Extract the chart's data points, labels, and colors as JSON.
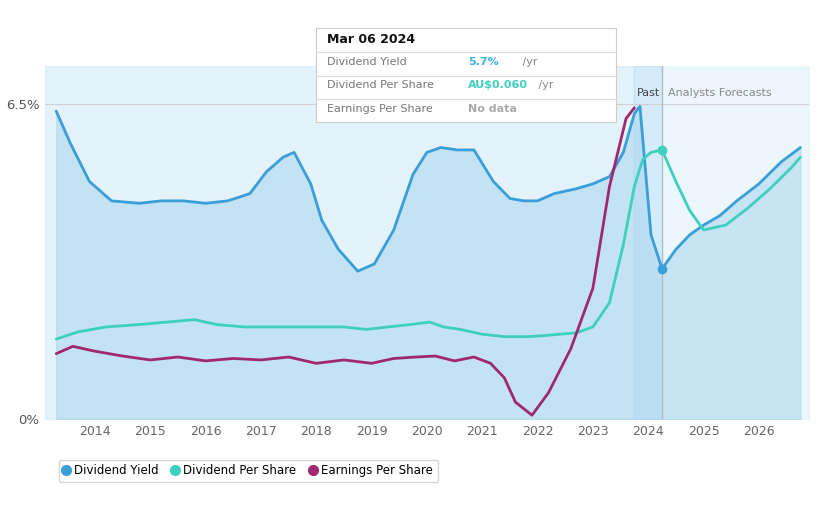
{
  "tooltip_date": "Mar 06 2024",
  "tooltip_rows": [
    {
      "label": "Dividend Yield",
      "value": "5.7%",
      "value_color": "#3ab4d8",
      "suffix": " /yr"
    },
    {
      "label": "Dividend Per Share",
      "value": "AU$0.060",
      "value_color": "#3ecfbf",
      "suffix": " /yr"
    },
    {
      "label": "Earnings Per Share",
      "value": "No data",
      "value_color": "#aaaaaa",
      "suffix": ""
    }
  ],
  "ymin": 0.0,
  "ymax": 6.5,
  "xmin": 2013.1,
  "xmax": 2026.9,
  "past_boundary": 2023.75,
  "past_boundary2": 2024.25,
  "background_color": "#ffffff",
  "dividend_yield": {
    "x": [
      2013.3,
      2013.55,
      2013.9,
      2014.3,
      2014.8,
      2015.2,
      2015.6,
      2016.0,
      2016.4,
      2016.8,
      2017.1,
      2017.4,
      2017.6,
      2017.9,
      2018.1,
      2018.4,
      2018.75,
      2019.05,
      2019.4,
      2019.75,
      2020.0,
      2020.25,
      2020.55,
      2020.85,
      2021.2,
      2021.5,
      2021.75,
      2022.0,
      2022.3,
      2022.7,
      2023.0,
      2023.3,
      2023.55,
      2023.75,
      2023.85,
      2024.05,
      2024.25,
      2024.5,
      2024.75,
      2025.0,
      2025.3,
      2025.6,
      2026.0,
      2026.4,
      2026.75
    ],
    "y": [
      6.35,
      5.7,
      4.9,
      4.5,
      4.45,
      4.5,
      4.5,
      4.45,
      4.5,
      4.65,
      5.1,
      5.4,
      5.5,
      4.85,
      4.1,
      3.5,
      3.05,
      3.2,
      3.9,
      5.05,
      5.5,
      5.6,
      5.55,
      5.55,
      4.9,
      4.55,
      4.5,
      4.5,
      4.65,
      4.75,
      4.85,
      5.0,
      5.5,
      6.3,
      6.45,
      3.8,
      3.1,
      3.5,
      3.8,
      4.0,
      4.2,
      4.5,
      4.85,
      5.3,
      5.6
    ],
    "color": "#3a9fd8",
    "linewidth": 2.0
  },
  "dividend_per_share": {
    "x": [
      2013.3,
      2013.7,
      2014.2,
      2014.8,
      2015.3,
      2015.8,
      2016.2,
      2016.7,
      2017.1,
      2017.6,
      2018.0,
      2018.5,
      2018.9,
      2019.3,
      2019.7,
      2020.05,
      2020.3,
      2020.6,
      2021.0,
      2021.4,
      2021.8,
      2022.1,
      2022.4,
      2022.7,
      2023.0,
      2023.3,
      2023.55,
      2023.75,
      2023.9,
      2024.05,
      2024.25,
      2024.5,
      2024.75,
      2025.0,
      2025.4,
      2025.8,
      2026.2,
      2026.6,
      2026.75
    ],
    "y": [
      1.65,
      1.8,
      1.9,
      1.95,
      2.0,
      2.05,
      1.95,
      1.9,
      1.9,
      1.9,
      1.9,
      1.9,
      1.85,
      1.9,
      1.95,
      2.0,
      1.9,
      1.85,
      1.75,
      1.7,
      1.7,
      1.72,
      1.75,
      1.78,
      1.9,
      2.4,
      3.6,
      4.8,
      5.35,
      5.5,
      5.55,
      4.9,
      4.3,
      3.9,
      4.0,
      4.35,
      4.75,
      5.2,
      5.4
    ],
    "color": "#3ecfbf",
    "linewidth": 2.0
  },
  "earnings_per_share": {
    "x": [
      2013.3,
      2013.6,
      2014.0,
      2014.5,
      2015.0,
      2015.5,
      2016.0,
      2016.5,
      2017.0,
      2017.5,
      2018.0,
      2018.5,
      2019.0,
      2019.4,
      2019.8,
      2020.15,
      2020.5,
      2020.85,
      2021.15,
      2021.4,
      2021.6,
      2021.9,
      2022.2,
      2022.6,
      2023.0,
      2023.3,
      2023.6,
      2023.75
    ],
    "y": [
      1.35,
      1.5,
      1.4,
      1.3,
      1.22,
      1.28,
      1.2,
      1.25,
      1.22,
      1.28,
      1.15,
      1.22,
      1.15,
      1.25,
      1.28,
      1.3,
      1.2,
      1.28,
      1.15,
      0.85,
      0.35,
      0.08,
      0.55,
      1.45,
      2.7,
      4.8,
      6.2,
      6.42
    ],
    "color": "#a02870",
    "linewidth": 2.0
  },
  "legend_items": [
    {
      "label": "Dividend Yield",
      "color": "#3a9fd8",
      "marker_color": "#3a9fd8"
    },
    {
      "label": "Dividend Per Share",
      "color": "#3ecfbf",
      "marker_color": "#3ecfbf"
    },
    {
      "label": "Earnings Per Share",
      "color": "#a02870",
      "marker_color": "#a02870"
    }
  ],
  "dy_dot_x": 2024.25,
  "dps_dot_x": 2024.25
}
